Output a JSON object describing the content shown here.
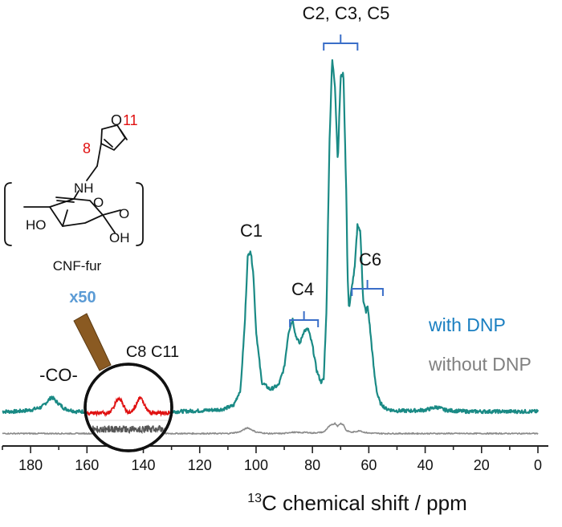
{
  "chart_data": {
    "type": "line",
    "x_axis": {
      "label_sup": "13",
      "label": "C chemical shift / ppm",
      "range": [
        190,
        0
      ],
      "reversed": true,
      "ticks": [
        180,
        160,
        140,
        120,
        100,
        80,
        60,
        40,
        20,
        0
      ]
    },
    "series": [
      {
        "name": "with DNP",
        "color": "#1a8a85",
        "baseline": 0,
        "x": [
          190,
          185,
          180,
          176,
          174,
          172.5,
          171,
          168,
          164,
          160,
          156,
          150,
          146,
          142,
          138,
          134,
          128,
          120,
          112,
          108,
          105.5,
          104,
          103,
          102,
          101,
          100,
          98,
          95,
          92,
          90,
          88.5,
          87,
          86,
          84.5,
          83,
          81.5,
          80,
          78.5,
          77,
          76,
          75,
          74,
          73,
          72,
          71,
          70,
          69,
          68,
          67.5,
          67,
          66,
          65,
          64,
          63,
          62.5,
          62,
          61,
          60.5,
          60,
          59,
          58,
          57,
          56,
          54,
          52,
          50,
          45,
          40,
          37,
          36,
          35,
          33,
          30,
          25,
          20,
          15,
          10,
          5,
          0
        ],
        "values": [
          0,
          0,
          1,
          3,
          7,
          10,
          7,
          2,
          0,
          0,
          0,
          0,
          0,
          0,
          0,
          0,
          0,
          0.5,
          1.5,
          4,
          15,
          60,
          105,
          110,
          95,
          55,
          20,
          15,
          18,
          30,
          54,
          63,
          52,
          46,
          55,
          56,
          45,
          28,
          20,
          22,
          70,
          180,
          240,
          222,
          170,
          228,
          230,
          150,
          90,
          70,
          85,
          98,
          128,
          122,
          100,
          75,
          68,
          72,
          65,
          45,
          25,
          12,
          6,
          2,
          1,
          0.5,
          0.5,
          1,
          2.5,
          3,
          2.5,
          1,
          0.5,
          0,
          0,
          0,
          0,
          0,
          0
        ],
        "noise": 1.2
      },
      {
        "name": "without DNP",
        "color": "#8a8a8a",
        "baseline": -15,
        "x": [
          190,
          150,
          110,
          106,
          103,
          102,
          100,
          96,
          90,
          88,
          86,
          84,
          82,
          80,
          76,
          74,
          72,
          71,
          70,
          69,
          68,
          66,
          63,
          62,
          60,
          55,
          50,
          0
        ],
        "values": [
          0,
          0,
          0,
          1,
          4,
          3,
          1,
          0,
          0,
          0.8,
          0.8,
          0.6,
          0.8,
          0.3,
          1,
          5,
          7,
          5,
          7,
          6,
          2,
          0.8,
          2,
          1,
          0.3,
          0,
          0,
          0
        ],
        "noise": 0.4
      }
    ],
    "inset": {
      "magnification": "x50",
      "label": "C8 C11",
      "range": [
        160,
        142
      ],
      "with_dnp_peaks": [
        {
          "x": 153.0,
          "height": 10
        },
        {
          "x": 148.5,
          "height": 10
        }
      ],
      "colors": {
        "with": "#e01010",
        "without": "#555555",
        "rim": "#111111"
      }
    },
    "annotations": [
      {
        "text": "-CO-",
        "x": 172
      },
      {
        "text": "C1",
        "x": 103
      },
      {
        "text": "C4",
        "x": 84
      },
      {
        "text": "C2, C3, C5",
        "x": 70
      },
      {
        "text": "C6",
        "x": 60
      }
    ],
    "brackets": [
      {
        "from": 88,
        "to": 78
      },
      {
        "from": 76,
        "to": 64
      },
      {
        "from": 66,
        "to": 55
      }
    ],
    "legend": {
      "placement": "right",
      "items": [
        {
          "text": "with DNP",
          "color": "#1a7fc1"
        },
        {
          "text": "without DNP",
          "color": "#808080"
        }
      ]
    },
    "molecule": {
      "caption": "CNF-fur",
      "atoms": {
        "O": "O",
        "NH": "NH",
        "HO": "HO",
        "OH": "OH"
      },
      "numbers": {
        "n8": "8",
        "n11": "11"
      },
      "number_color": "#e01010"
    },
    "colors": {
      "bracket": "#3a6ec8",
      "axis": "#222222",
      "stick": "#8a5a22"
    }
  }
}
